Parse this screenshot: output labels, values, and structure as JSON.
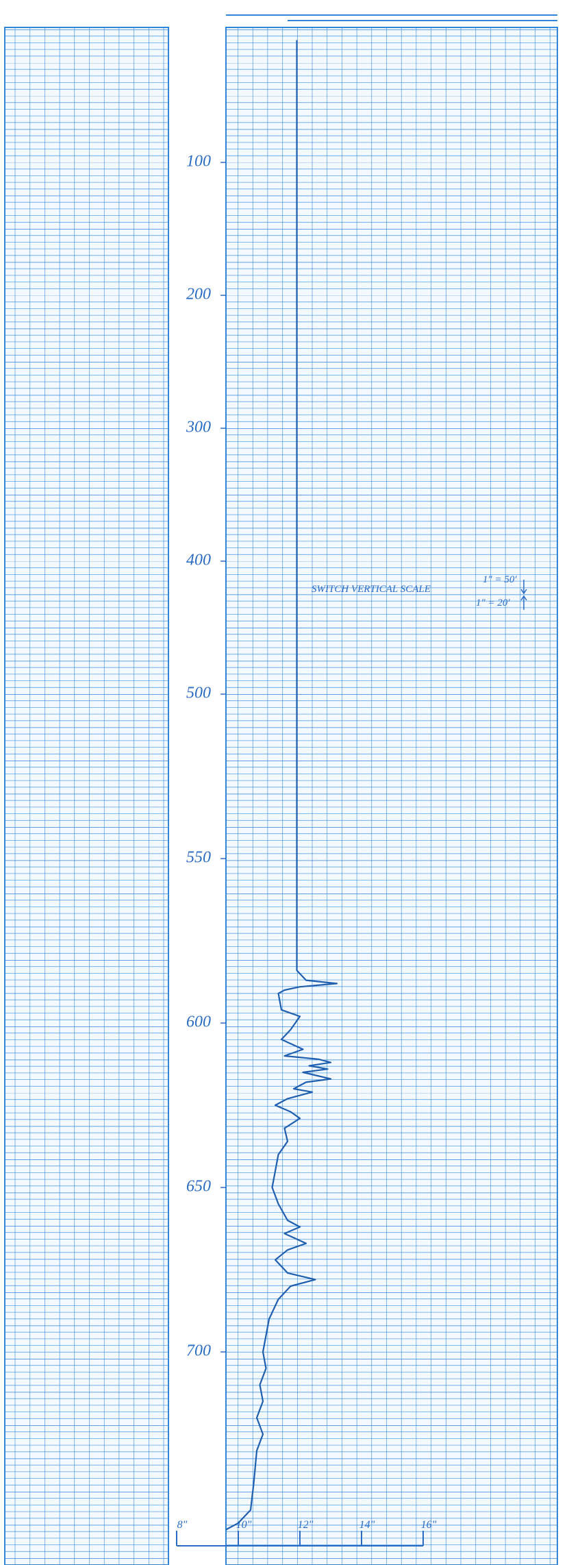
{
  "chart_data": {
    "type": "line",
    "ylim": [
      0,
      756
    ],
    "y_inverted": true,
    "yticks": [
      100,
      200,
      300,
      400,
      500,
      550,
      600,
      650,
      700
    ],
    "xlim": [
      8,
      20
    ],
    "xticks": [
      {
        "value": 8,
        "label": "8\""
      },
      {
        "value": 10,
        "label": "10\""
      },
      {
        "value": 12,
        "label": "12\""
      },
      {
        "value": 14,
        "label": "14\""
      },
      {
        "value": 16,
        "label": "16\""
      }
    ],
    "annotations": [
      "SWITCH VERTICAL SCALE",
      "1\" = 50'",
      "1\" = 20'"
    ],
    "grid": true,
    "series": [
      {
        "color": "#1f5fae",
        "x": [
          11.9,
          11.9,
          12.2,
          13.2,
          12.0,
          11.5,
          11.3,
          11.4,
          12.0,
          11.7,
          11.4,
          12.1,
          11.5,
          12.6,
          13.0,
          12.3,
          12.9,
          12.1,
          13.0,
          12.2,
          11.8,
          12.4,
          11.6,
          11.2,
          11.7,
          12.0,
          11.5,
          11.6,
          11.3,
          11.2,
          11.1,
          11.3,
          11.6,
          12.0,
          11.5,
          12.2,
          11.6,
          11.2,
          11.6,
          12.5,
          11.7,
          11.3,
          11.0,
          10.9,
          10.8,
          10.9,
          10.7,
          10.8,
          10.6,
          10.8,
          10.6,
          10.5,
          10.4,
          10.0,
          9.6
        ],
        "values": [
          8,
          584,
          587,
          588,
          589,
          590,
          591,
          596,
          598,
          602,
          605,
          608,
          610,
          611,
          612,
          613,
          614,
          615,
          617,
          618,
          620,
          621,
          623,
          625,
          627,
          629,
          632,
          636,
          640,
          645,
          650,
          655,
          660,
          662,
          664,
          667,
          669,
          672,
          676,
          678,
          680,
          684,
          690,
          695,
          700,
          705,
          710,
          715,
          720,
          725,
          730,
          740,
          748,
          752,
          754
        ]
      }
    ]
  }
}
